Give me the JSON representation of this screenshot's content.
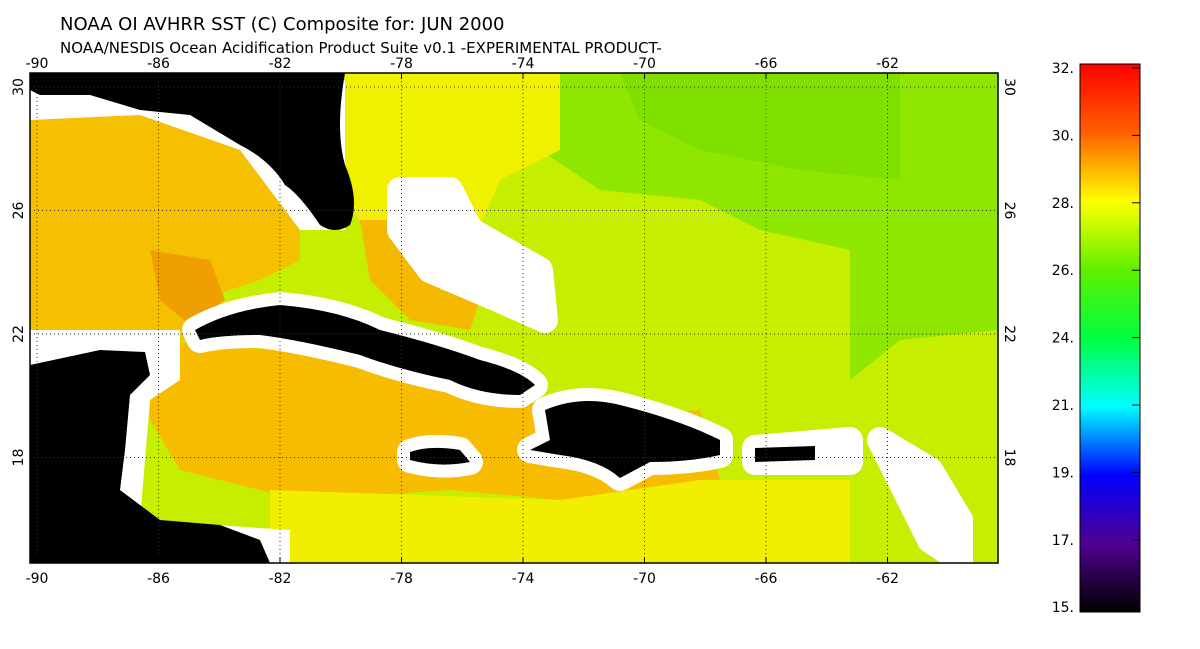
{
  "header": {
    "title": "NOAA OI AVHRR SST (C) Composite for: JUN 2000",
    "subtitle": "NOAA/NESDIS Ocean Acidification Product Suite  v0.1 -EXPERIMENTAL PRODUCT-"
  },
  "map": {
    "lon_labels": [
      "-90",
      "-86",
      "-82",
      "-78",
      "-74",
      "-70",
      "-66",
      "-62"
    ],
    "lat_labels": [
      "30",
      "26",
      "22",
      "18"
    ]
  },
  "colorbar": {
    "labels": [
      "32.",
      "30.",
      "28.",
      "26.",
      "24.",
      "21.",
      "19.",
      "17.",
      "15."
    ]
  }
}
